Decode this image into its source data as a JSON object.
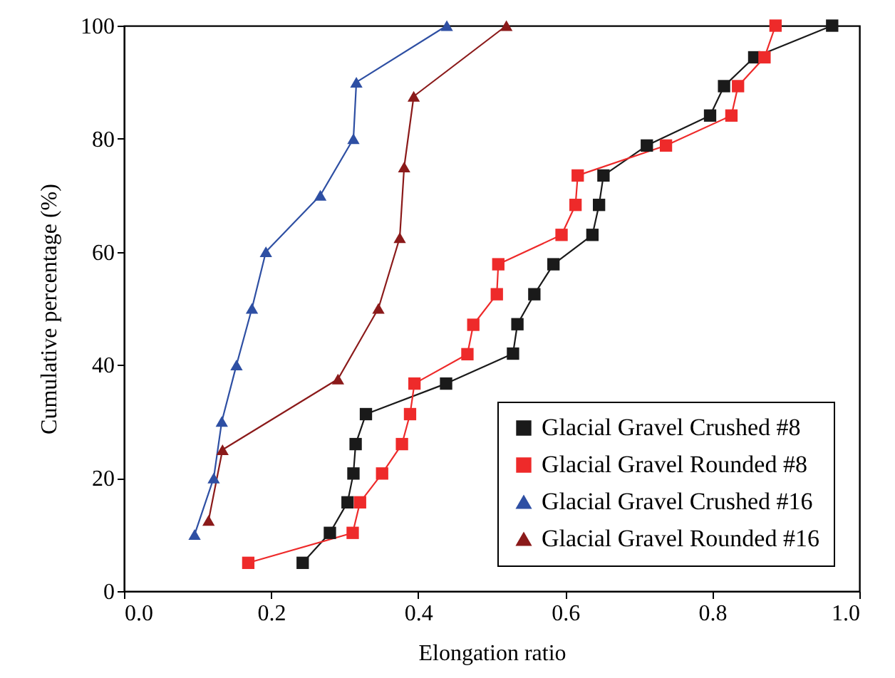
{
  "chart_data": {
    "type": "line",
    "xlabel": "Elongation ratio",
    "ylabel": "Cumulative percentage (%)",
    "xlim": [
      0,
      1
    ],
    "ylim": [
      0,
      100
    ],
    "xticks": [
      {
        "value": 0,
        "label": "0.0"
      },
      {
        "value": 0.2,
        "label": "0.2"
      },
      {
        "value": 0.4,
        "label": "0.4"
      },
      {
        "value": 0.6,
        "label": "0.6"
      },
      {
        "value": 0.8,
        "label": "0.8"
      },
      {
        "value": 1,
        "label": "1.0"
      }
    ],
    "yticks": [
      0,
      20,
      40,
      60,
      80,
      100
    ],
    "grid": false,
    "legend": "bottom right",
    "line_style": "solid",
    "series": [
      {
        "name": "Glacial Gravel Crushed #8",
        "color": "#1a1a1a",
        "marker": "square",
        "x": [
          0.243,
          0.28,
          0.304,
          0.312,
          0.315,
          0.329,
          0.438,
          0.529,
          0.535,
          0.558,
          0.584,
          0.637,
          0.646,
          0.652,
          0.711,
          0.797,
          0.816,
          0.857,
          0.963
        ],
        "values": [
          5,
          10.3,
          15.7,
          20.8,
          26,
          31.3,
          36.7,
          42,
          47.2,
          52.5,
          57.8,
          63,
          68.3,
          73.5,
          78.8,
          84.1,
          89.3,
          94.4,
          100
        ]
      },
      {
        "name": "Glacial Gravel Rounded #8",
        "color": "#ee2a2a",
        "marker": "square",
        "x": [
          0.169,
          0.311,
          0.321,
          0.351,
          0.378,
          0.389,
          0.395,
          0.467,
          0.475,
          0.507,
          0.509,
          0.595,
          0.614,
          0.617,
          0.737,
          0.826,
          0.835,
          0.871,
          0.886
        ],
        "values": [
          5,
          10.3,
          15.7,
          20.8,
          26,
          31.3,
          36.7,
          41.9,
          47.1,
          52.5,
          57.8,
          63,
          68.3,
          73.5,
          78.8,
          84.1,
          89.3,
          94.4,
          100
        ]
      },
      {
        "name": "Glacial Gravel Crushed #16",
        "color": "#2e4fa3",
        "marker": "triangle",
        "x": [
          0.096,
          0.122,
          0.133,
          0.153,
          0.174,
          0.193,
          0.267,
          0.312,
          0.316,
          0.439
        ],
        "values": [
          10,
          20,
          30,
          40,
          50,
          60,
          70,
          80,
          90,
          100
        ]
      },
      {
        "name": "Glacial Gravel Rounded #16",
        "color": "#8b1a1a",
        "marker": "triangle",
        "x": [
          0.115,
          0.134,
          0.291,
          0.346,
          0.375,
          0.381,
          0.394,
          0.52
        ],
        "values": [
          12.5,
          25,
          37.5,
          50,
          62.5,
          75,
          87.5,
          100
        ]
      }
    ]
  }
}
